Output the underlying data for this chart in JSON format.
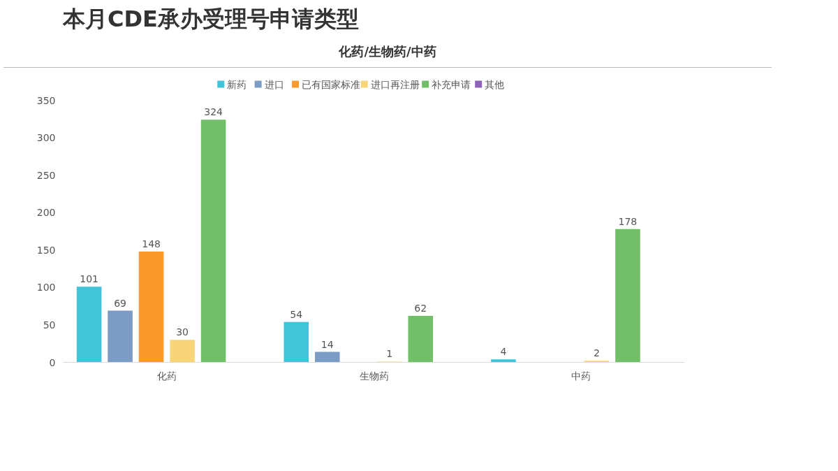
{
  "chart_data": {
    "type": "bar",
    "title": "本月CDE承办受理号申请类型",
    "subtitle": "化药/生物药/中药",
    "categories": [
      "化药",
      "生物药",
      "中药"
    ],
    "series": [
      {
        "name": "新药",
        "color": "#40c4d8",
        "values": [
          101,
          54,
          4
        ]
      },
      {
        "name": "进口",
        "color": "#7b9cc4",
        "values": [
          69,
          14,
          null
        ]
      },
      {
        "name": "已有国家标准",
        "color": "#f99a2b",
        "values": [
          148,
          null,
          null
        ]
      },
      {
        "name": "进口再注册",
        "color": "#f9d57a",
        "values": [
          30,
          1,
          2
        ]
      },
      {
        "name": "补充申请",
        "color": "#72bf6a",
        "values": [
          324,
          62,
          178
        ]
      },
      {
        "name": "其他",
        "color": "#8c63b8",
        "values": [
          null,
          null,
          null
        ]
      }
    ],
    "ylim": [
      0,
      350
    ],
    "yticks": [
      0,
      50,
      100,
      150,
      200,
      250,
      300,
      350
    ],
    "data_labels": true,
    "grid": false,
    "legend": "top"
  }
}
